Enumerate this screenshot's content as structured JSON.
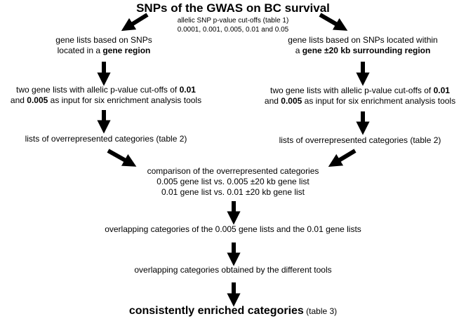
{
  "title": "SNPs of the GWAS on BC survival",
  "cutoffs": {
    "line1": "allelic SNP p-value cut-offs (table 1)",
    "line2": "0.0001, 0.001, 0.005, 0.01 and 0.05"
  },
  "left": {
    "box1": {
      "line1": "gene lists based on SNPs",
      "line2_pre": "located in a ",
      "line2_bold": "gene region"
    },
    "box2": {
      "line1_pre": "two gene lists with allelic p-value cut-offs of ",
      "line1_bold": "0.01",
      "line2_pre": "and ",
      "line2_bold": "0.005",
      "line2_post": " as input for six enrichment analysis tools"
    },
    "box3": "lists of overrepresented categories (table 2)"
  },
  "right": {
    "box1": {
      "line1": "gene lists based on SNPs located within",
      "line2_pre": "a ",
      "line2_bold": "gene ±20 kb surrounding region"
    },
    "box2": {
      "line1_pre": "two gene lists with allelic p-value cut-offs of ",
      "line1_bold": "0.01",
      "line2_pre": "and ",
      "line2_bold": "0.005",
      "line2_post": " as input for six enrichment analysis tools"
    },
    "box3": "lists of overrepresented categories (table 2)"
  },
  "comparison": {
    "line1": "comparison of the overrepresented categories",
    "line2": "0.005 gene list vs. 0.005 ±20 kb gene list",
    "line3": "0.01 gene list vs. 0.01 ±20 kb gene list"
  },
  "overlap1": "overlapping categories of the 0.005 gene lists and the 0.01 gene lists",
  "overlap2": "overlapping categories obtained by the different tools",
  "final": {
    "main": "consistently enriched categories",
    "note": " (table 3)"
  }
}
